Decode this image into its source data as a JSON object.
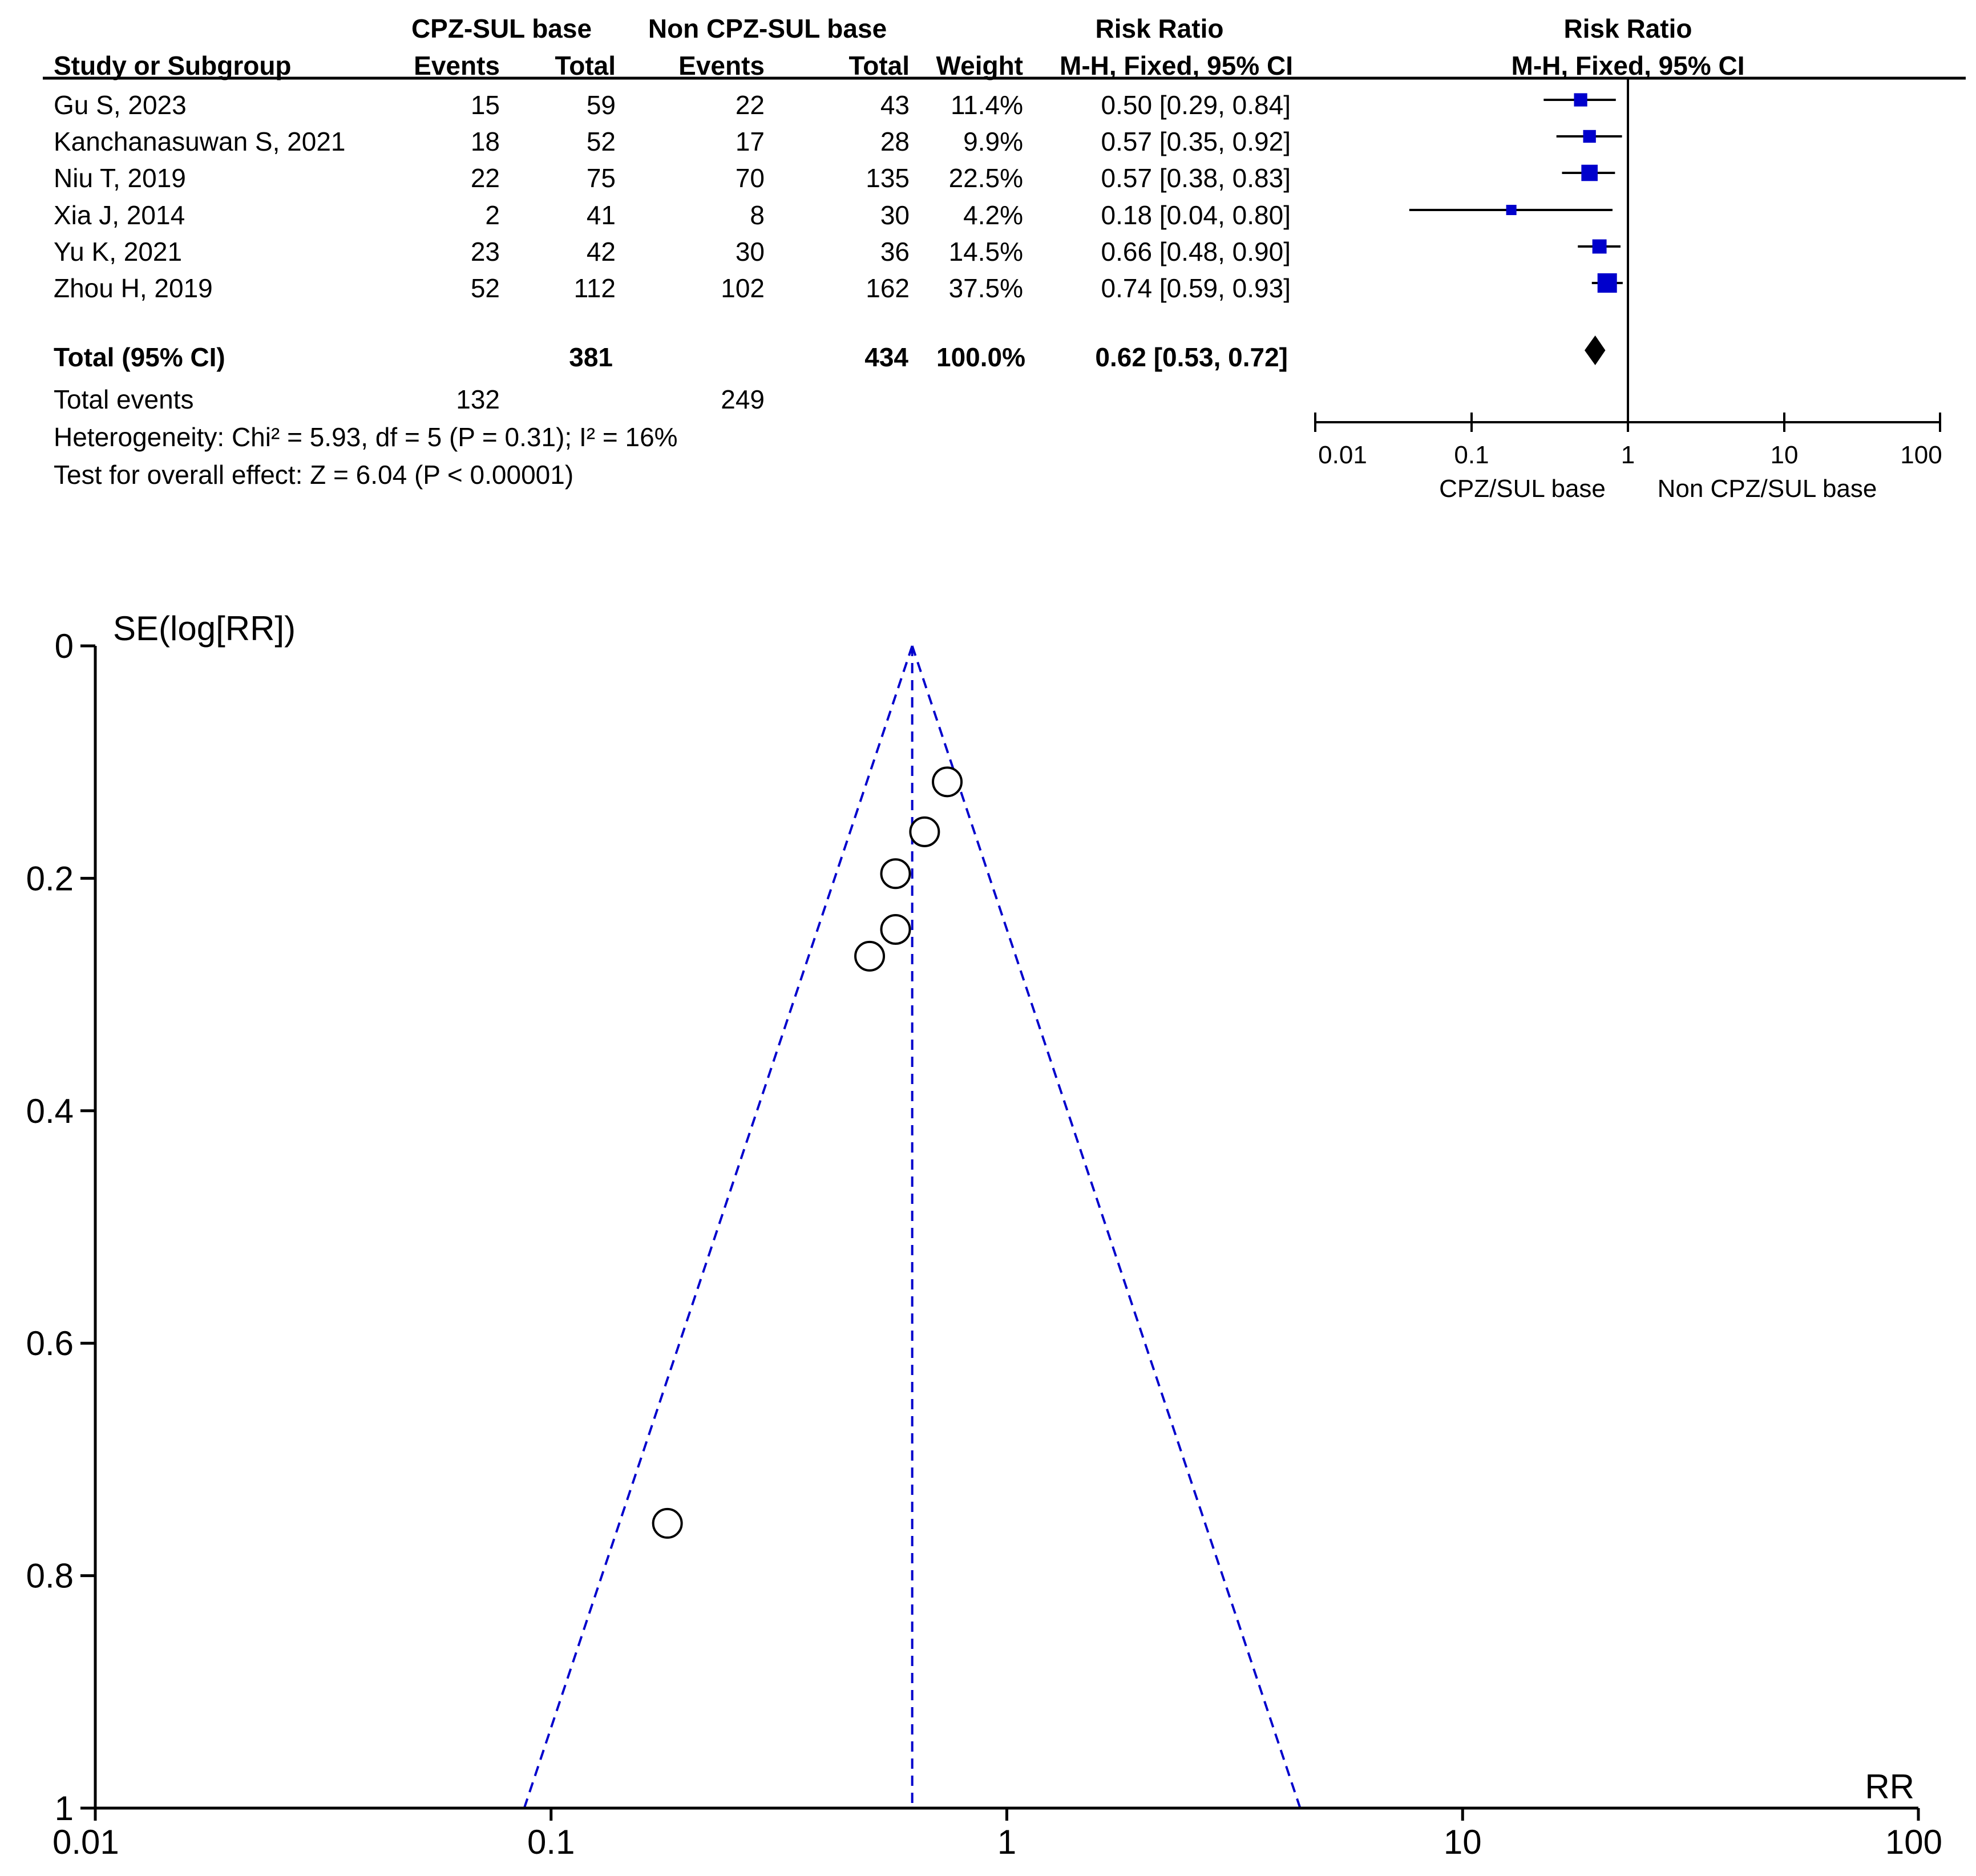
{
  "chart_data": [
    {
      "type": "forest",
      "header": {
        "group_left": "CPZ-SUL base",
        "group_right": "Non CPZ-SUL base",
        "risk_ratio_left": "Risk Ratio",
        "risk_ratio_right": "Risk Ratio",
        "study_col": "Study or Subgroup",
        "events_left": "Events",
        "total_left": "Total",
        "events_right": "Events",
        "total_right": "Total",
        "weight": "Weight",
        "method_left": "M-H, Fixed, 95% CI",
        "method_right": "M-H, Fixed, 95% CI"
      },
      "studies": [
        {
          "name": "Gu S, 2023",
          "e1": "15",
          "t1": "59",
          "e2": "22",
          "t2": "43",
          "weight": "11.4%",
          "ci_text": "0.50 [0.29, 0.84]",
          "rr": 0.5,
          "lo": 0.29,
          "hi": 0.84,
          "w": 11.4
        },
        {
          "name": "Kanchanasuwan S, 2021",
          "e1": "18",
          "t1": "52",
          "e2": "17",
          "t2": "28",
          "weight": "9.9%",
          "ci_text": "0.57 [0.35, 0.92]",
          "rr": 0.57,
          "lo": 0.35,
          "hi": 0.92,
          "w": 9.9
        },
        {
          "name": "Niu T, 2019",
          "e1": "22",
          "t1": "75",
          "e2": "70",
          "t2": "135",
          "weight": "22.5%",
          "ci_text": "0.57 [0.38, 0.83]",
          "rr": 0.57,
          "lo": 0.38,
          "hi": 0.83,
          "w": 22.5
        },
        {
          "name": "Xia J, 2014",
          "e1": "2",
          "t1": "41",
          "e2": "8",
          "t2": "30",
          "weight": "4.2%",
          "ci_text": "0.18 [0.04, 0.80]",
          "rr": 0.18,
          "lo": 0.04,
          "hi": 0.8,
          "w": 4.2
        },
        {
          "name": "Yu K, 2021",
          "e1": "23",
          "t1": "42",
          "e2": "30",
          "t2": "36",
          "weight": "14.5%",
          "ci_text": "0.66 [0.48, 0.90]",
          "rr": 0.66,
          "lo": 0.48,
          "hi": 0.9,
          "w": 14.5
        },
        {
          "name": "Zhou H, 2019",
          "e1": "52",
          "t1": "112",
          "e2": "102",
          "t2": "162",
          "weight": "37.5%",
          "ci_text": "0.74 [0.59, 0.93]",
          "rr": 0.74,
          "lo": 0.59,
          "hi": 0.93,
          "w": 37.5
        }
      ],
      "total": {
        "label": "Total (95% CI)",
        "t1": "381",
        "t2": "434",
        "weight": "100.0%",
        "ci_text": "0.62 [0.53, 0.72]",
        "rr": 0.62,
        "lo": 0.53,
        "hi": 0.72
      },
      "total_events": {
        "label": "Total events",
        "e1": "132",
        "e2": "249"
      },
      "heterogeneity": "Heterogeneity: Chi² = 5.93, df = 5 (P = 0.31); I² = 16%",
      "overall_effect": "Test for overall effect: Z = 6.04 (P < 0.00001)",
      "axis": {
        "scale": "log",
        "ticks": [
          0.01,
          0.1,
          1,
          10,
          100
        ],
        "tick_labels": [
          "0.01",
          "0.1",
          "1",
          "10",
          "100"
        ]
      },
      "favours_left": "CPZ/SUL base",
      "favours_right": "Non CPZ/SUL base"
    },
    {
      "type": "scatter",
      "title": "",
      "ylabel": "SE(log[RR])",
      "xlabel": "RR",
      "x_scale": "log",
      "xlim": [
        0.01,
        100
      ],
      "ylim": [
        0,
        1
      ],
      "y_inverted": true,
      "x_ticks": [
        0.01,
        0.1,
        1,
        10,
        100
      ],
      "x_tick_labels": [
        "0.01",
        "0.1",
        "1",
        "10",
        "100"
      ],
      "y_ticks": [
        0,
        0.2,
        0.4,
        0.6,
        0.8,
        1
      ],
      "y_tick_labels": [
        "0",
        "0.2",
        "0.4",
        "0.6",
        "0.8",
        "1"
      ],
      "pooled_rr": 0.62,
      "funnel_line_color": "#0000cc",
      "points": [
        {
          "rr": 0.74,
          "se": 0.117
        },
        {
          "rr": 0.66,
          "se": 0.16
        },
        {
          "rr": 0.57,
          "se": 0.196
        },
        {
          "rr": 0.57,
          "se": 0.244
        },
        {
          "rr": 0.5,
          "se": 0.267
        },
        {
          "rr": 0.18,
          "se": 0.755
        }
      ]
    }
  ]
}
